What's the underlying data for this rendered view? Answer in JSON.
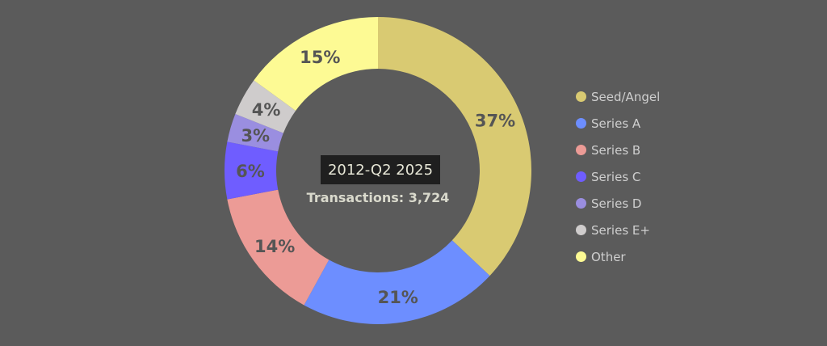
{
  "center": {
    "period": "2012-Q2 2025",
    "transactions": "Transactions: 3,724"
  },
  "chart_data": {
    "type": "pie",
    "title": "2012-Q2 2025",
    "subtitle": "Transactions: 3,724",
    "categories": [
      "Seed/Angel",
      "Series A",
      "Series B",
      "Series C",
      "Series D",
      "Series E+",
      "Other"
    ],
    "values": [
      37,
      21,
      14,
      6,
      3,
      4,
      15
    ],
    "labels": [
      "37%",
      "21%",
      "14%",
      "6%",
      "3%",
      "4%",
      "15%"
    ],
    "colors": [
      "#d9ca72",
      "#6d8eff",
      "#ec9b96",
      "#6f5dff",
      "#9a8ee0",
      "#cfcccc",
      "#fdfa94"
    ],
    "legend_position": "right",
    "donut": true
  },
  "legend": [
    {
      "label": "Seed/Angel",
      "color": "#d9ca72"
    },
    {
      "label": "Series A",
      "color": "#6d8eff"
    },
    {
      "label": "Series B",
      "color": "#ec9b96"
    },
    {
      "label": "Series C",
      "color": "#6f5dff"
    },
    {
      "label": "Series D",
      "color": "#9a8ee0"
    },
    {
      "label": "Series E+",
      "color": "#cfcccc"
    },
    {
      "label": "Other",
      "color": "#fdfa94"
    }
  ]
}
